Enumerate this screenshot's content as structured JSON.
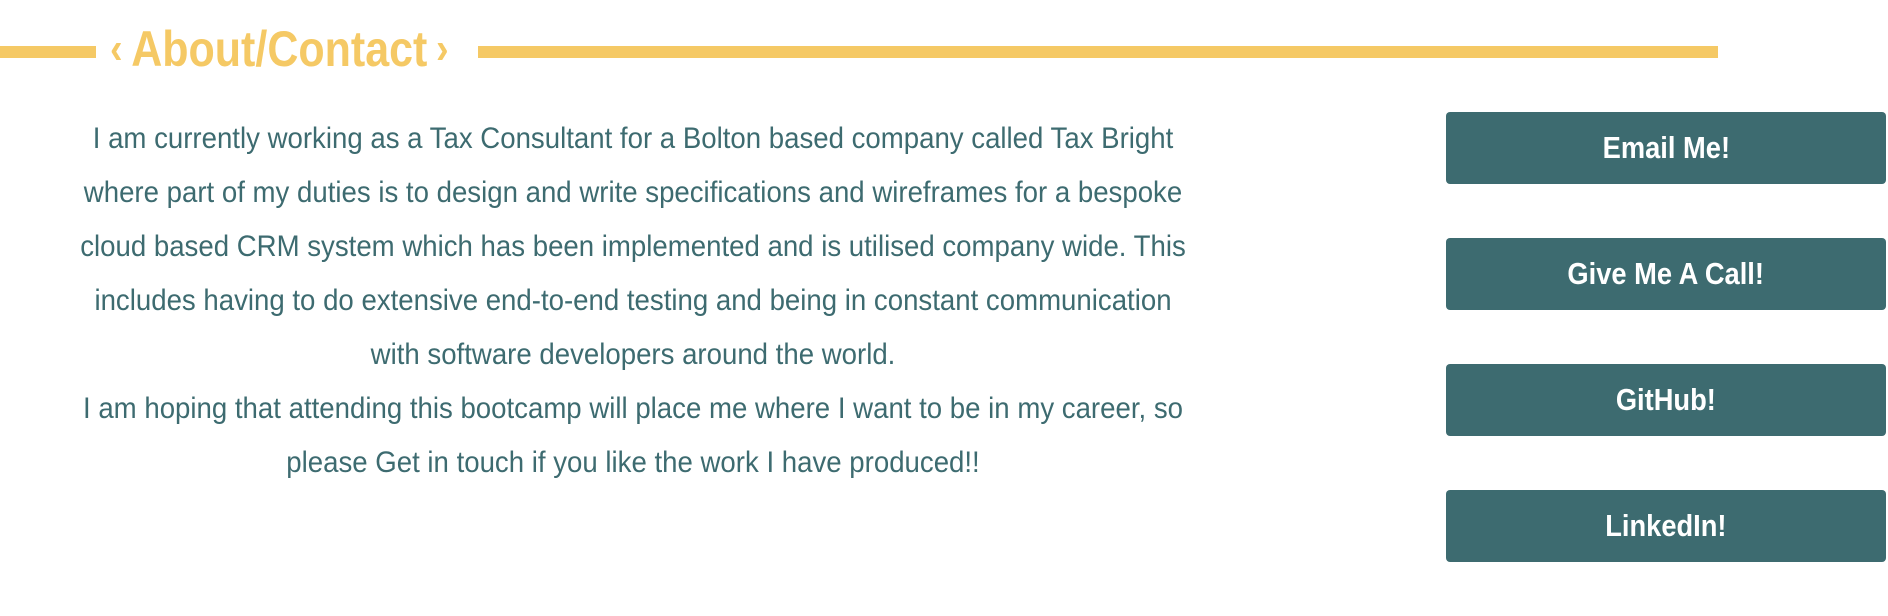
{
  "section": {
    "title": "About/Contact",
    "left_chevron": "‹",
    "right_chevron": "›"
  },
  "about": {
    "paragraph_1": "I am currently working as a Tax Consultant for a Bolton based company called Tax Bright where part of my duties is to design and write specifications and wireframes for a bespoke cloud based CRM system which has been implemented and is utilised company wide. This includes having to do extensive end-to-end testing and being in constant communication with software developers around the world.",
    "paragraph_2": "I am hoping that attending this bootcamp will place me where I want to be in my career, so please Get in touch if you like the work I have produced!!"
  },
  "contact": {
    "buttons": [
      {
        "label": "Email Me!"
      },
      {
        "label": "Give Me A Call!"
      },
      {
        "label": "GitHub!"
      },
      {
        "label": "LinkedIn!"
      }
    ]
  },
  "colors": {
    "accent_yellow": "#f5c965",
    "teal": "#3d6b70",
    "button_text": "#ffffff",
    "background": "#ffffff"
  }
}
